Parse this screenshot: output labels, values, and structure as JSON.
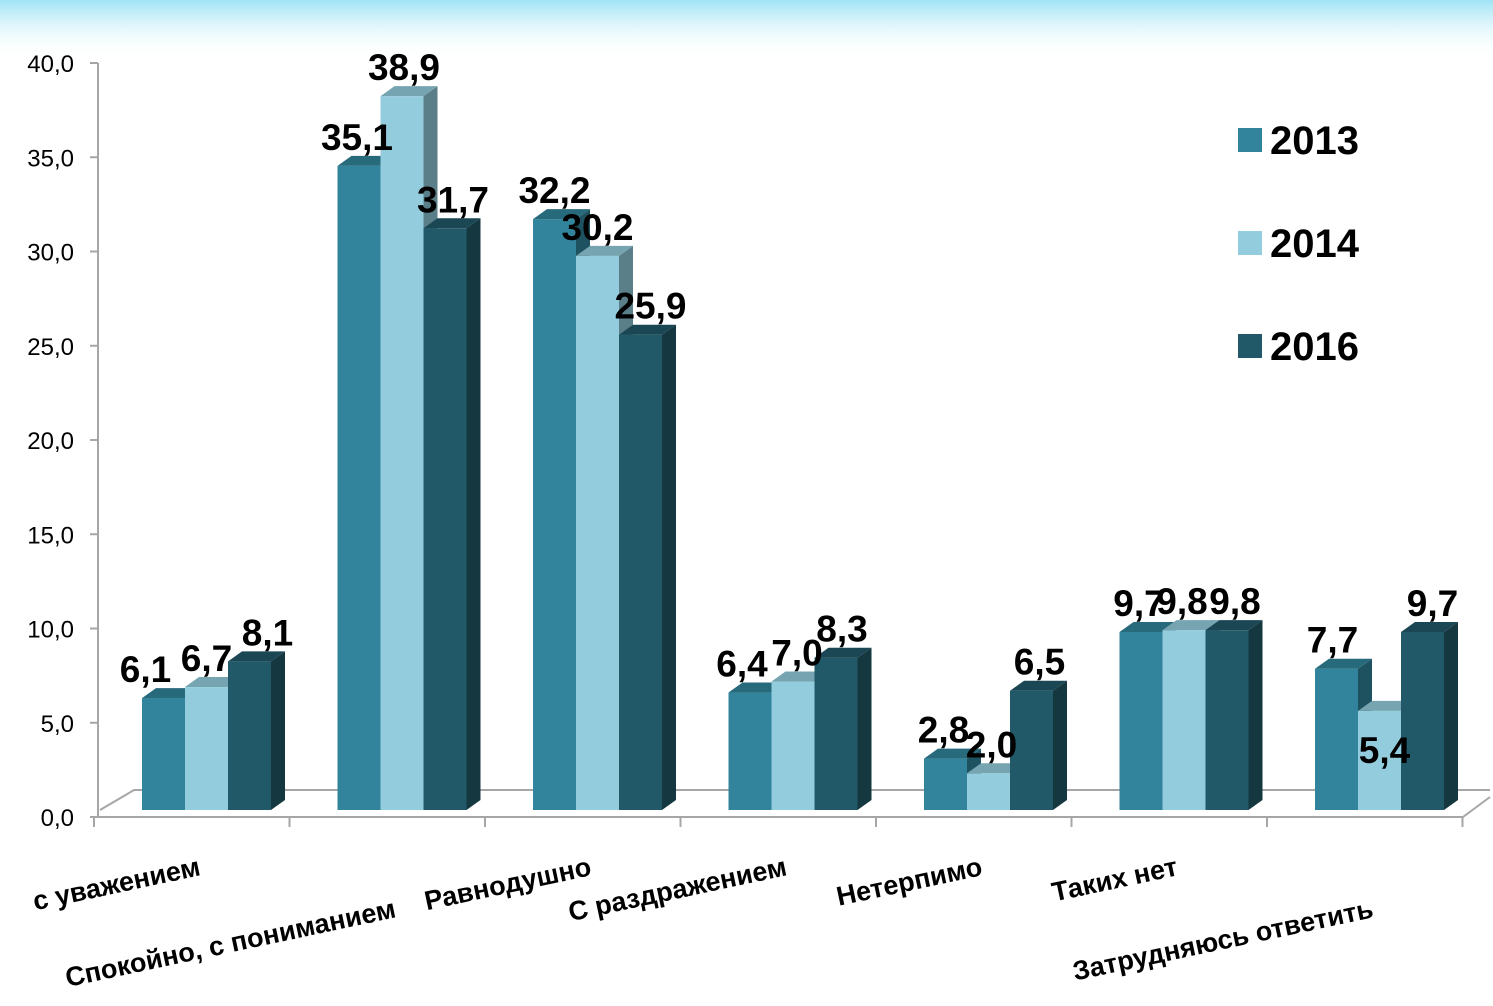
{
  "chart_data": {
    "type": "bar",
    "categories": [
      "с уважением",
      "Спокойно, с пониманием",
      "Равнодушно",
      "С раздражением",
      "Нетерпимо",
      "Таких нет",
      "Затрудняюсь ответить"
    ],
    "series": [
      {
        "name": "2013",
        "color": "#31849b",
        "values": [
          6.1,
          35.1,
          32.2,
          6.4,
          2.8,
          9.7,
          7.7
        ]
      },
      {
        "name": "2014",
        "color": "#93cddd",
        "values": [
          6.7,
          38.9,
          30.2,
          7.0,
          2.0,
          9.8,
          5.4
        ]
      },
      {
        "name": "2016",
        "color": "#215968",
        "values": [
          8.1,
          31.7,
          25.9,
          8.3,
          6.5,
          9.8,
          9.7
        ]
      }
    ],
    "data_labels": [
      [
        "6,1",
        "35,1",
        "32,2",
        "6,4",
        "2,8",
        "9,7",
        "7,7"
      ],
      [
        "6,7",
        "38,9",
        "30,2",
        "7,0",
        "2,0",
        "9,8",
        "5,4"
      ],
      [
        "8,1",
        "31,7",
        "25,9",
        "8,3",
        "6,5",
        "9,8",
        "9,7"
      ]
    ],
    "y_ticks": [
      "0,0",
      "5,0",
      "10,0",
      "15,0",
      "20,0",
      "25,0",
      "30,0",
      "35,0",
      "40,0"
    ],
    "ylim": [
      0,
      40
    ],
    "legend": {
      "position": "right",
      "entries": [
        "2013",
        "2014",
        "2016"
      ]
    },
    "title": "",
    "xlabel": "",
    "ylabel": "",
    "grid": false,
    "style": "3d-clustered-column"
  }
}
